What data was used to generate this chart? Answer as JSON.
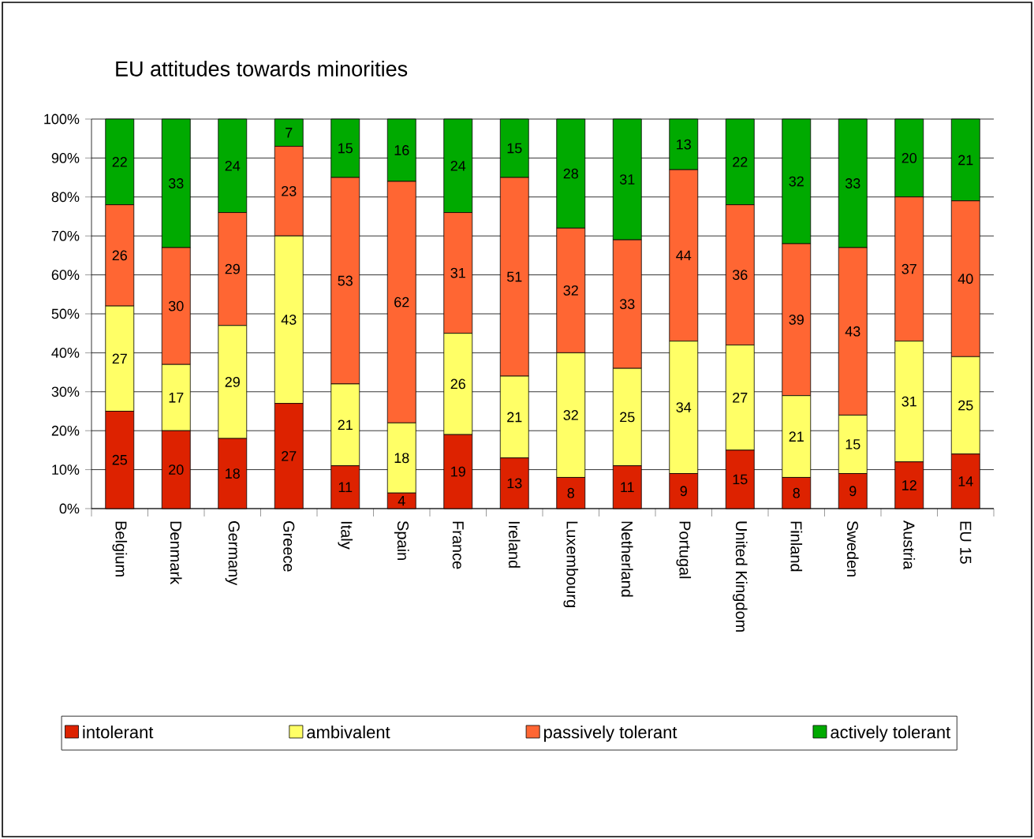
{
  "chart_data": {
    "type": "bar",
    "title": "EU attitudes towards minorities",
    "stacked": true,
    "data_labels": true,
    "grid": "y",
    "legend": "bottom",
    "categories": [
      "Belgium",
      "Denmark",
      "Germany",
      "Greece",
      "Italy",
      "Spain",
      "France",
      "Ireland",
      "Luxembourg",
      "Netherland",
      "Portugal",
      "United Kingdom",
      "Finland",
      "Sweden",
      "Austria",
      "EU 15"
    ],
    "series": [
      {
        "name": "intolerant",
        "color": "#dd2200",
        "values": [
          25,
          20,
          18,
          27,
          11,
          4,
          19,
          13,
          8,
          11,
          9,
          15,
          8,
          9,
          12,
          14
        ]
      },
      {
        "name": "ambivalent",
        "color": "#ffff66",
        "values": [
          27,
          17,
          29,
          43,
          21,
          18,
          26,
          21,
          32,
          25,
          34,
          27,
          21,
          15,
          31,
          25
        ]
      },
      {
        "name": "passively tolerant",
        "color": "#ff6633",
        "values": [
          26,
          30,
          29,
          23,
          53,
          62,
          31,
          51,
          32,
          33,
          44,
          36,
          39,
          43,
          37,
          40
        ]
      },
      {
        "name": "actively tolerant",
        "color": "#00aa00",
        "values": [
          22,
          33,
          24,
          7,
          15,
          16,
          24,
          15,
          28,
          31,
          13,
          22,
          32,
          33,
          20,
          21
        ]
      }
    ],
    "ylim": [
      0,
      100
    ],
    "yticks": [
      {
        "value": 0,
        "label": "0%"
      },
      {
        "value": 10,
        "label": "10%"
      },
      {
        "value": 20,
        "label": "20%"
      },
      {
        "value": 30,
        "label": "30%"
      },
      {
        "value": 40,
        "label": "40%"
      },
      {
        "value": 50,
        "label": "50%"
      },
      {
        "value": 60,
        "label": "60%"
      },
      {
        "value": 70,
        "label": "70%"
      },
      {
        "value": 80,
        "label": "80%"
      },
      {
        "value": 90,
        "label": "90%"
      },
      {
        "value": 100,
        "label": "100%"
      }
    ]
  }
}
